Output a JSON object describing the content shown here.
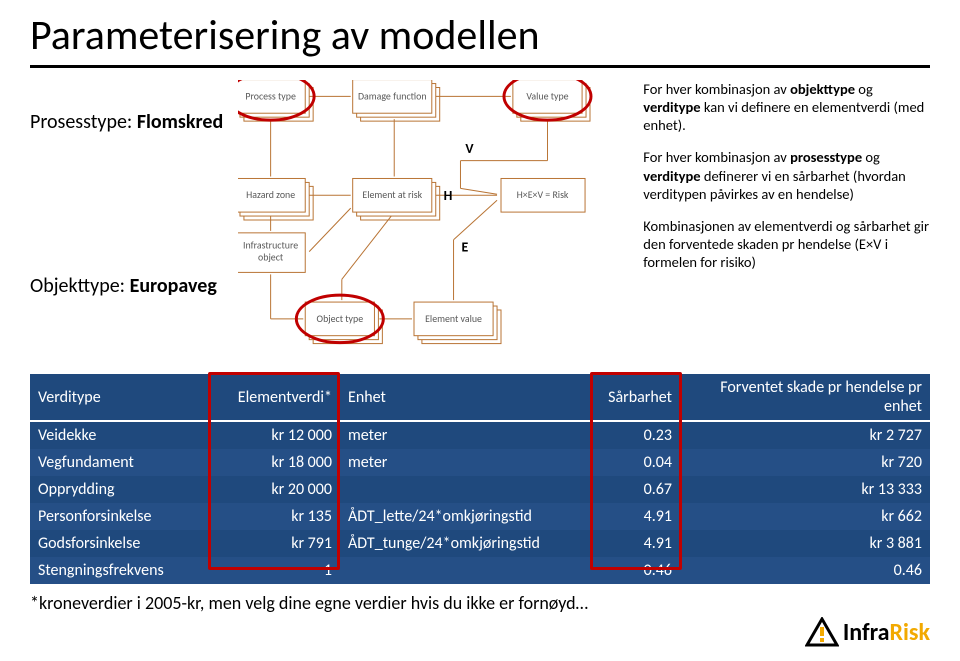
{
  "title": "Parameterisering av modellen",
  "left": {
    "process_label": "Prosesstype: ",
    "process_bold": "Flomskred",
    "object_label": "Objekttype: ",
    "object_bold": "Europaveg"
  },
  "diagram": {
    "boxes": {
      "process_type": "Process type",
      "damage_function": "Damage function",
      "value_type": "Value type",
      "hazard_zone": "Hazard zone",
      "element_at_risk": "Element at risk",
      "risk": "H×E×V = Risk",
      "infra": "Infrastructure\nobject",
      "object_type": "Object type",
      "element_value": "Element value"
    },
    "letters": {
      "V": "V",
      "H": "H",
      "E": "E"
    }
  },
  "right": {
    "p1a": "For hver kombinasjon av ",
    "p1b": "objekttype",
    "p1c": " og ",
    "p1d": "verditype",
    "p1e": " kan vi definere en elementverdi (med enhet).",
    "p2a": "For hver kombinasjon av ",
    "p2b": "prosesstype",
    "p2c": " og ",
    "p2d": "verditype",
    "p2e": " definerer vi en sårbarhet (hvordan verditypen påvirkes av en hendelse)",
    "p3": "Kombinasjonen av elementverdi og sårbarhet gir den forventede skaden pr hendelse (E×V i formelen for risiko)"
  },
  "table": {
    "headers": [
      "Verditype",
      "Elementverdi*",
      "Enhet",
      "Sårbarhet",
      "Forventet skade pr hendelse pr enhet"
    ],
    "rows": [
      [
        "Veidekke",
        "kr 12 000",
        "meter",
        "0.23",
        "kr 2 727"
      ],
      [
        "Vegfundament",
        "kr 18 000",
        "meter",
        "0.04",
        "kr 720"
      ],
      [
        "Opprydding",
        "kr 20 000",
        "",
        "0.67",
        "kr 13 333"
      ],
      [
        "Personforsinkelse",
        "kr 135",
        "ÅDT_lette/24*omkjøringstid",
        "4.91",
        "kr 662"
      ],
      [
        "Godsforsinkelse",
        "kr 791",
        "ÅDT_tunge/24*omkjøringstid",
        "4.91",
        "kr 3 881"
      ],
      [
        "Stengningsfrekvens",
        "1",
        "",
        "0.46",
        "0.46"
      ]
    ]
  },
  "footnote": "*kroneverdier i 2005-kr, men velg dine egne verdier hvis du ikke er fornøyd…",
  "logo": {
    "prefix": "Infra",
    "suffix": "Risk"
  },
  "colors": {
    "table_bg": "#1f497d",
    "red": "#c00000",
    "diagram_stroke": "#b87333",
    "diagram_text": "#595959",
    "gold": "#f2a900"
  }
}
